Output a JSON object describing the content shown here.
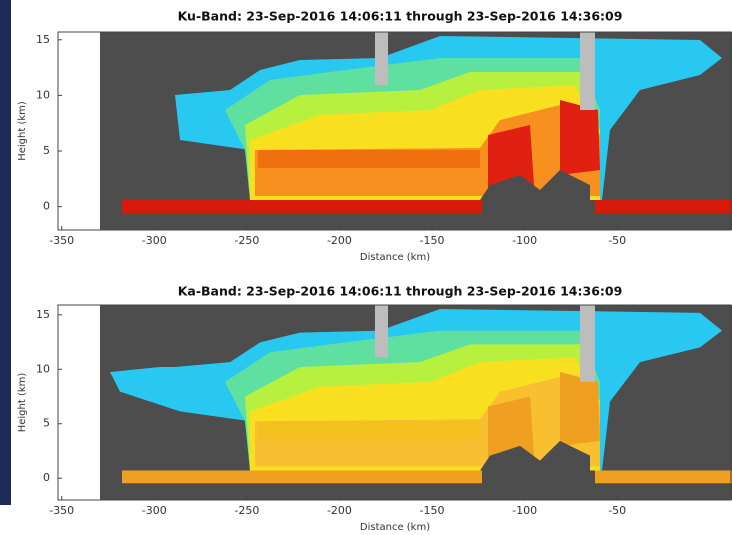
{
  "chart_data": [
    {
      "type": "image",
      "title": "Ku-Band: 23-Sep-2016 14:06:11 through 23-Sep-2016 14:36:09",
      "xlabel": "Distance (km)",
      "ylabel": "Height (km)",
      "xlim": [
        -352,
        12
      ],
      "ylim": [
        -2.1,
        15.7
      ],
      "xticks": [
        -350,
        -300,
        -250,
        -200,
        -150,
        -100,
        -50
      ],
      "yticks": [
        0,
        5,
        10,
        15
      ]
    },
    {
      "type": "image",
      "title": "Ka-Band: 23-Sep-2016 14:06:11 through 23-Sep-2016 14:36:09",
      "xlabel": "Distance (km)",
      "ylabel": "Height (km)",
      "xlim": [
        -352,
        12
      ],
      "ylim": [
        -2,
        15.9
      ],
      "xticks": [
        -350,
        -300,
        -250,
        -200,
        -150,
        -100,
        -50
      ],
      "yticks": [
        0,
        5,
        10,
        15
      ]
    }
  ]
}
